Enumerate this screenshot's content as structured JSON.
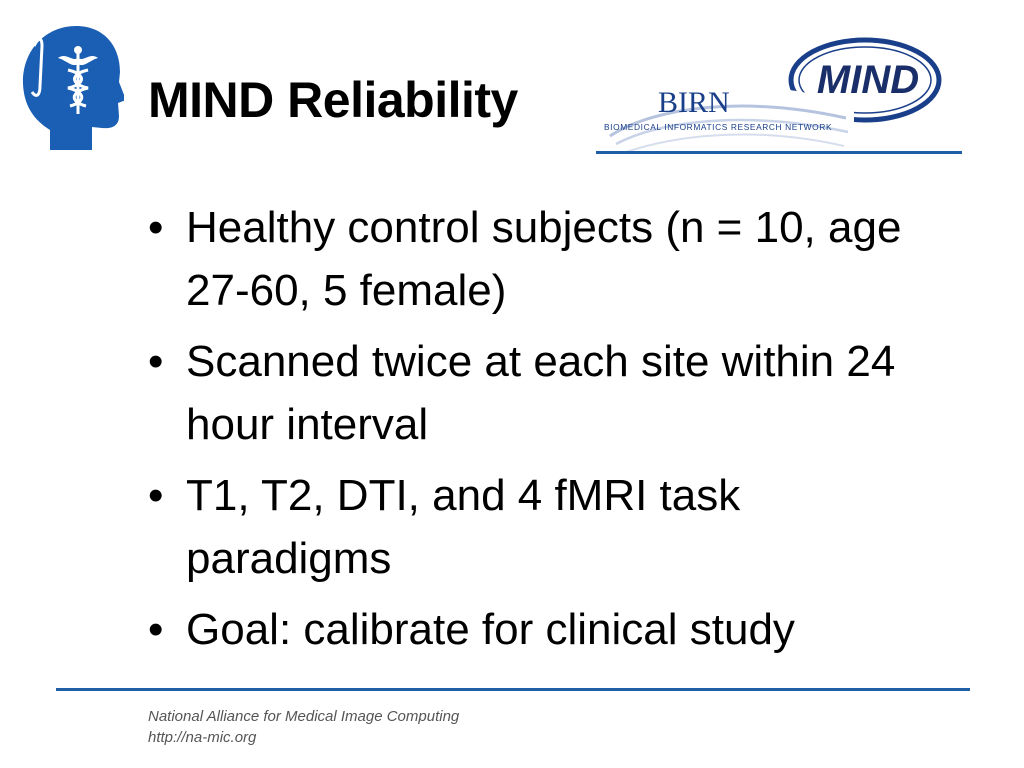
{
  "title": "MIND Reliability",
  "logos": {
    "mind_text": "MIND",
    "birn_text": "BIRN",
    "birn_subtitle": "BIOMEDICAL INFORMATICS RESEARCH NETWORK",
    "namic_icon": "head-with-caduceus-icon"
  },
  "bullets": [
    {
      "marker": "•",
      "text": "Healthy control subjects (n = 10, age 27-60, 5 female)"
    },
    {
      "marker": "•",
      "text": "Scanned twice at each site within 24 hour interval"
    },
    {
      "marker": "•",
      "text": "T1, T2, DTI, and 4 fMRI task paradigms"
    },
    {
      "marker": "•",
      "text": "Goal: calibrate for clinical study"
    }
  ],
  "footer": {
    "org": "National Alliance for Medical Image Computing",
    "url": "http://na-mic.org"
  },
  "colors": {
    "accent": "#1f5fa8",
    "logo_blue": "#1a5fb4",
    "text": "#000000",
    "footer_text": "#555555"
  }
}
